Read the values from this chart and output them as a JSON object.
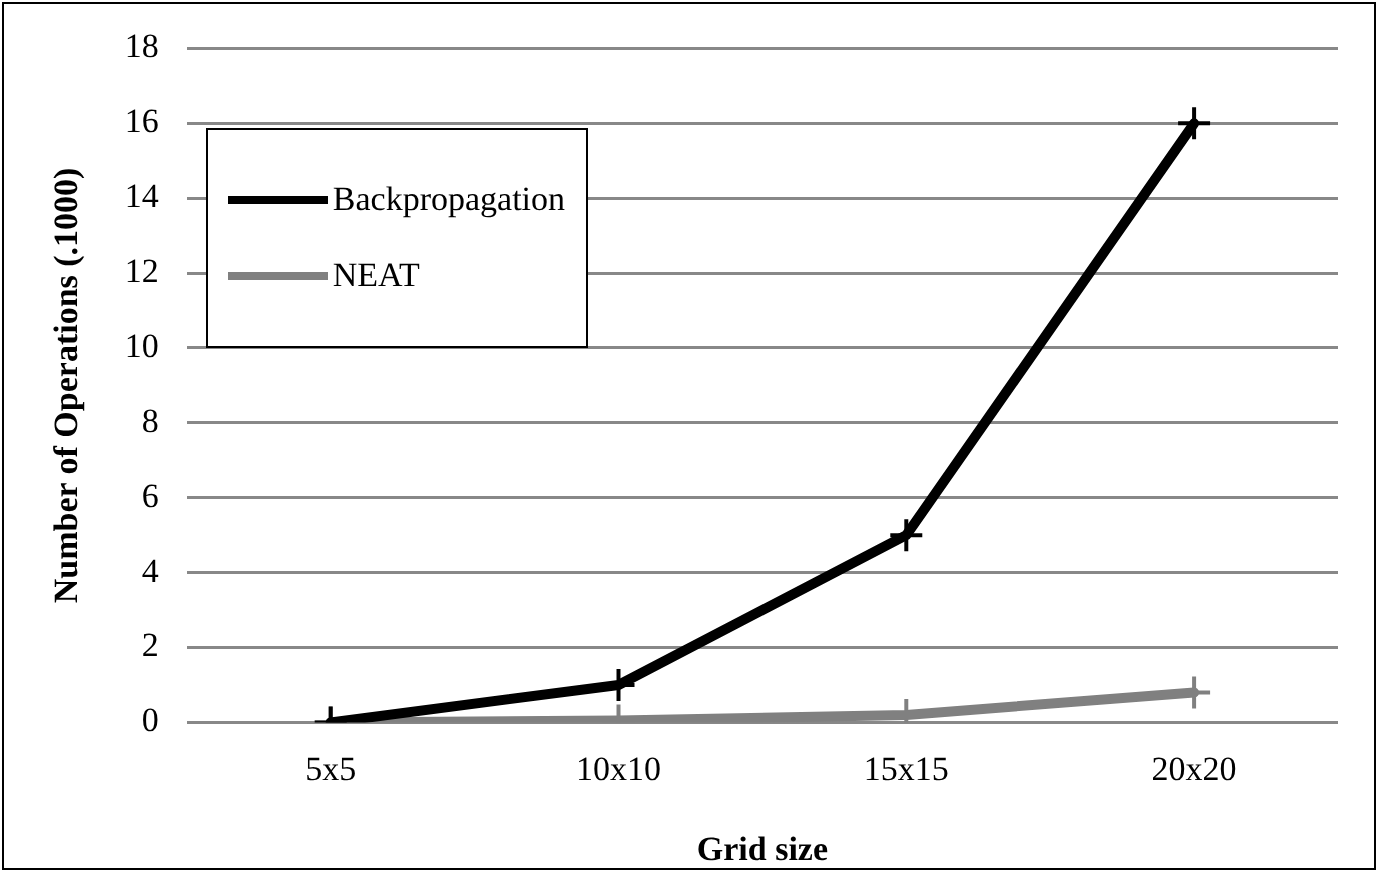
{
  "chart_data": {
    "type": "line",
    "xlabel": "Grid size",
    "ylabel": "Number of Operations (.1000)",
    "categories": [
      "5x5",
      "10x10",
      "15x15",
      "20x20"
    ],
    "series": [
      {
        "name": "Backpropagation",
        "color": "#000000",
        "values": [
          0,
          1,
          5,
          16
        ],
        "marker": "cross"
      },
      {
        "name": "NEAT",
        "color": "#808080",
        "values": [
          0,
          0.05,
          0.2,
          0.8
        ],
        "marker": "cross"
      }
    ],
    "ylim": [
      0,
      18
    ],
    "yticks": [
      0,
      2,
      4,
      6,
      8,
      10,
      12,
      14,
      16,
      18
    ],
    "grid": "y",
    "legend": "top left"
  }
}
